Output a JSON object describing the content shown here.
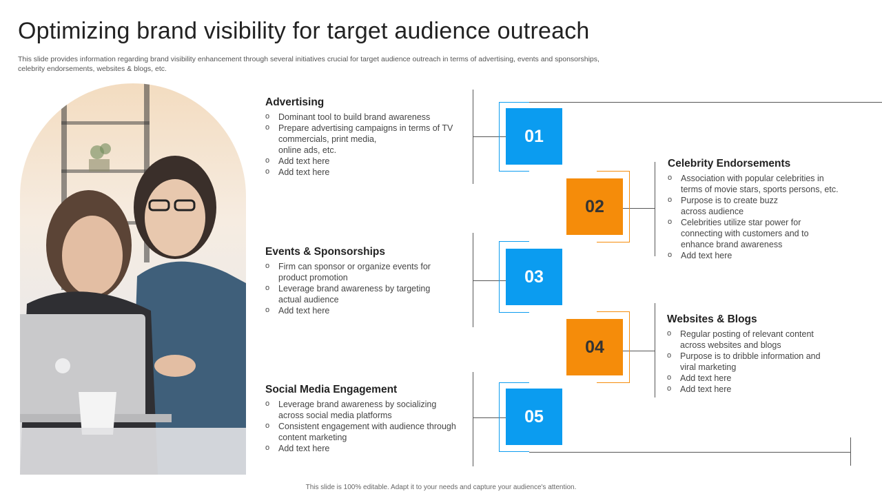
{
  "title": "Optimizing brand visibility for target audience outreach",
  "subtitle": "This slide provides information regarding brand visibility enhancement through several initiatives crucial for target audience outreach in terms of advertising, events and sponsorships, celebrity endorsements, websites & blogs, etc.",
  "steps": [
    {
      "number": "01",
      "color": "#0b9cf0"
    },
    {
      "number": "02",
      "color": "#f58c0a"
    },
    {
      "number": "03",
      "color": "#0b9cf0"
    },
    {
      "number": "04",
      "color": "#f58c0a"
    },
    {
      "number": "05",
      "color": "#0b9cf0"
    }
  ],
  "sections": {
    "advertising": {
      "heading": "Advertising",
      "bullets": [
        "Dominant tool to build brand awareness",
        "Prepare advertising campaigns in terms of TV\ncommercials, print media,\nonline ads, etc.",
        "Add text here",
        "Add text here"
      ]
    },
    "celebrity": {
      "heading": "Celebrity Endorsements",
      "bullets": [
        "Association with popular celebrities in\nterms of movie stars, sports persons, etc.",
        "Purpose is to create buzz\nacross audience",
        "Celebrities utilize star power for\nconnecting with customers and to\nenhance brand awareness",
        "Add text here"
      ]
    },
    "events": {
      "heading": "Events & Sponsorships",
      "bullets": [
        "Firm can sponsor or organize events for\nproduct promotion",
        "Leverage brand awareness by targeting\nactual audience",
        "Add text here"
      ]
    },
    "websites": {
      "heading": "Websites & Blogs",
      "bullets": [
        "Regular posting of relevant content\nacross websites and blogs",
        "Purpose is to dribble information and\nviral marketing",
        "Add text here",
        "Add text here"
      ]
    },
    "social": {
      "heading": "Social Media Engagement",
      "bullets": [
        "Leverage brand awareness by socializing\nacross social media platforms",
        "Consistent engagement with audience through\ncontent marketing",
        "Add text here"
      ]
    }
  },
  "footer": "This slide is 100% editable. Adapt it to your needs and capture your audience's attention."
}
